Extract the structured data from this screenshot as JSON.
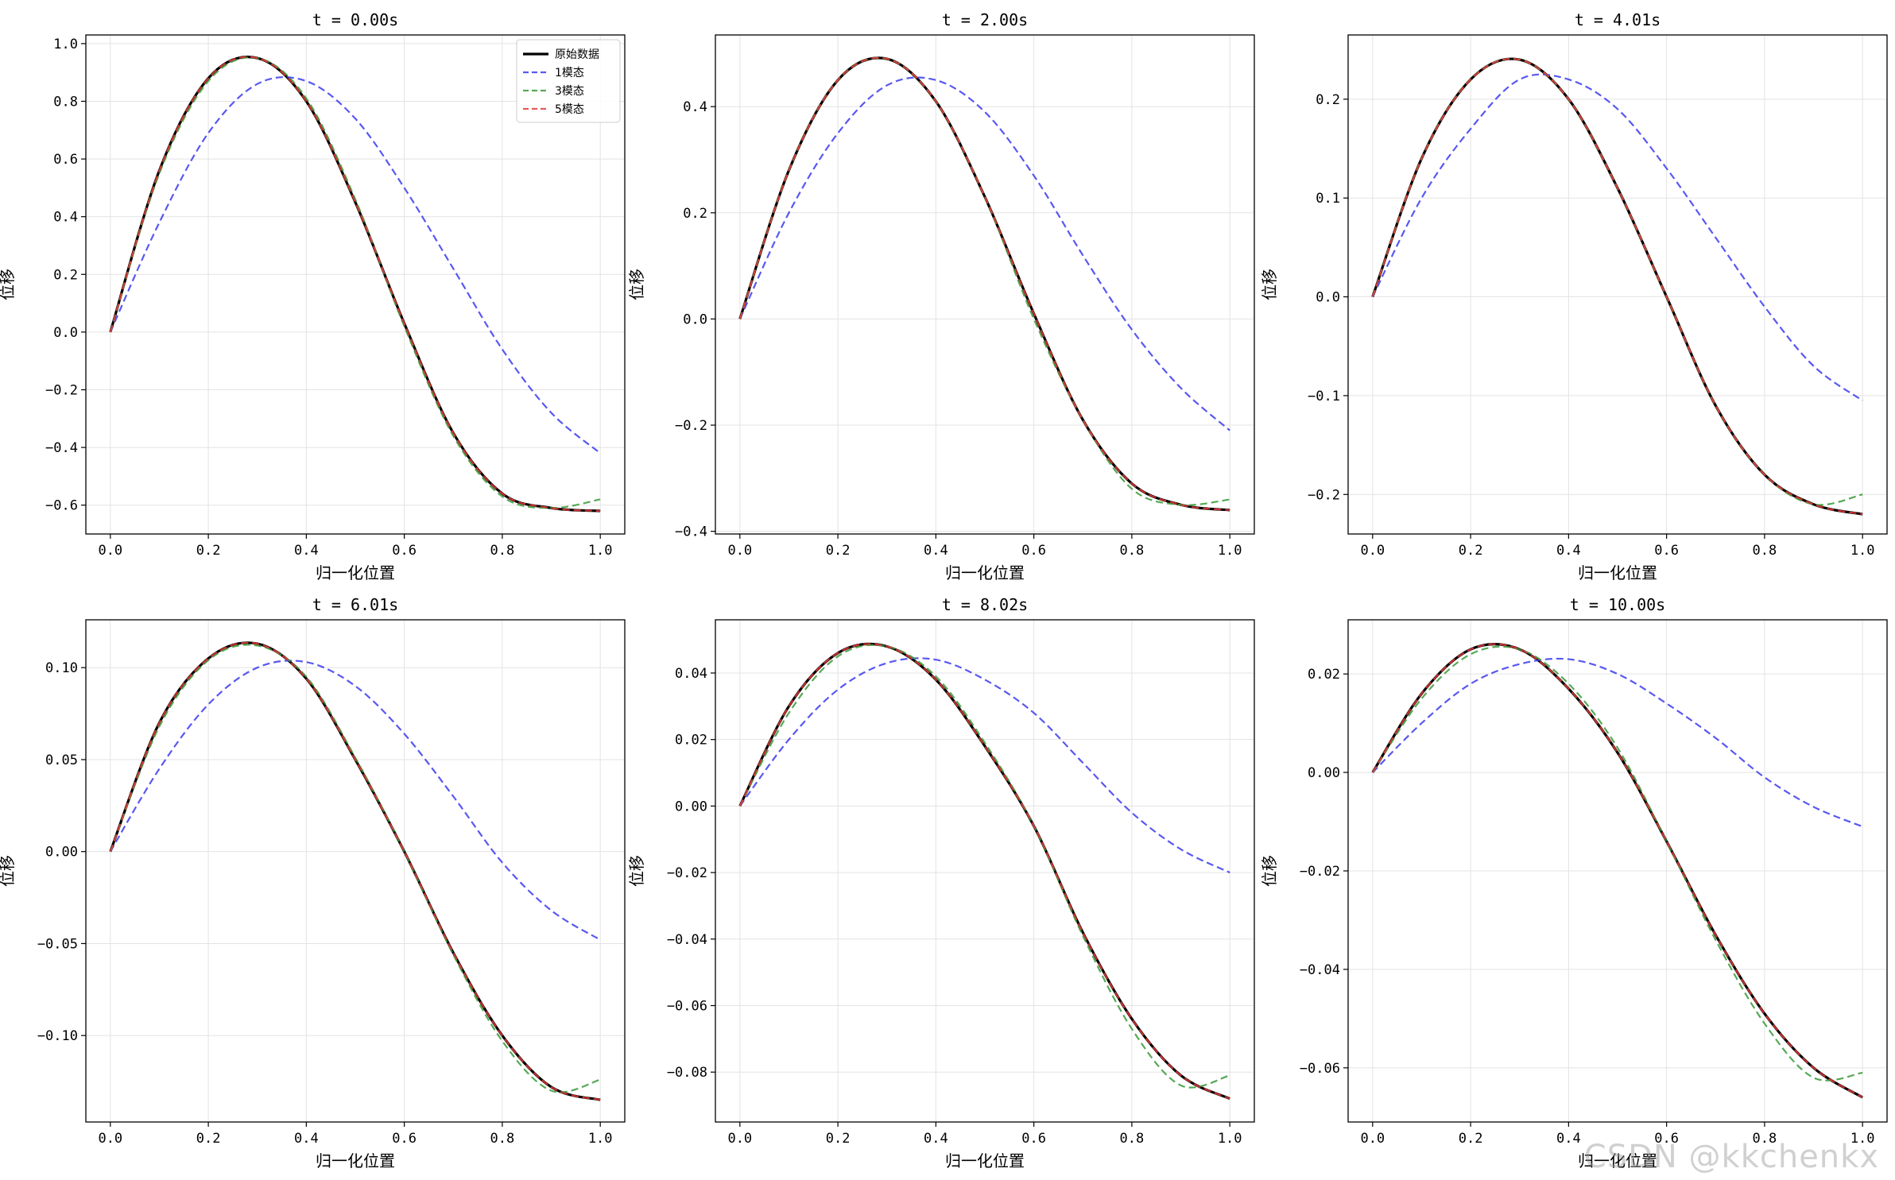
{
  "watermark": "CSDN @kkchenkx",
  "colors": {
    "original": "#000000",
    "mode1": "#3b3bf0",
    "mode3": "#3a9a3a",
    "mode5": "#e83a3a",
    "grid": "#e3e3e3"
  },
  "chart_data": [
    {
      "type": "line",
      "title": "t = 0.00s",
      "xlabel": "归一化位置",
      "ylabel": "位移",
      "xlim": [
        -0.05,
        1.05
      ],
      "ylim": [
        -0.7,
        1.03
      ],
      "xticks": [
        0.0,
        0.2,
        0.4,
        0.6,
        0.8,
        1.0
      ],
      "xticklabels": [
        "0.0",
        "0.2",
        "0.4",
        "0.6",
        "0.8",
        "1.0"
      ],
      "yticks": [
        -0.6,
        -0.4,
        -0.2,
        0.0,
        0.2,
        0.4,
        0.6,
        0.8,
        1.0
      ],
      "yticklabels": [
        "−0.6",
        "−0.4",
        "−0.2",
        "0.0",
        "0.2",
        "0.4",
        "0.6",
        "0.8",
        "1.0"
      ],
      "grid": true,
      "legend": "top-right",
      "x": [
        0.0,
        0.1,
        0.2,
        0.3,
        0.4,
        0.5,
        0.6,
        0.7,
        0.8,
        0.9,
        1.0
      ],
      "series": [
        {
          "name": "原始数据",
          "style": "solid",
          "values": [
            0.0,
            0.56,
            0.88,
            0.95,
            0.8,
            0.45,
            0.03,
            -0.35,
            -0.56,
            -0.61,
            -0.62
          ]
        },
        {
          "name": "1模态",
          "style": "dashed",
          "values": [
            0.0,
            0.38,
            0.69,
            0.86,
            0.87,
            0.74,
            0.5,
            0.22,
            -0.06,
            -0.28,
            -0.42
          ]
        },
        {
          "name": "3模态",
          "style": "dashed",
          "values": [
            0.0,
            0.55,
            0.87,
            0.95,
            0.81,
            0.46,
            0.02,
            -0.36,
            -0.57,
            -0.61,
            -0.58
          ]
        },
        {
          "name": "5模态",
          "style": "dashed",
          "values": [
            0.0,
            0.56,
            0.88,
            0.95,
            0.8,
            0.45,
            0.03,
            -0.35,
            -0.56,
            -0.61,
            -0.62
          ]
        }
      ]
    },
    {
      "type": "line",
      "title": "t = 2.00s",
      "xlabel": "归一化位置",
      "ylabel": "位移",
      "xlim": [
        -0.05,
        1.05
      ],
      "ylim": [
        -0.405,
        0.535
      ],
      "xticks": [
        0.0,
        0.2,
        0.4,
        0.6,
        0.8,
        1.0
      ],
      "xticklabels": [
        "0.0",
        "0.2",
        "0.4",
        "0.6",
        "0.8",
        "1.0"
      ],
      "yticks": [
        -0.4,
        -0.2,
        0.0,
        0.2,
        0.4
      ],
      "yticklabels": [
        "−0.4",
        "−0.2",
        "0.0",
        "0.2",
        "0.4"
      ],
      "grid": true,
      "x": [
        0.0,
        0.1,
        0.2,
        0.3,
        0.4,
        0.5,
        0.6,
        0.7,
        0.8,
        0.9,
        1.0
      ],
      "series": [
        {
          "name": "原始数据",
          "style": "solid",
          "values": [
            0.0,
            0.28,
            0.45,
            0.49,
            0.41,
            0.23,
            0.01,
            -0.19,
            -0.31,
            -0.35,
            -0.36
          ]
        },
        {
          "name": "1模态",
          "style": "dashed",
          "values": [
            0.0,
            0.2,
            0.35,
            0.44,
            0.45,
            0.39,
            0.27,
            0.12,
            -0.02,
            -0.13,
            -0.21
          ]
        },
        {
          "name": "3模态",
          "style": "dashed",
          "values": [
            0.0,
            0.28,
            0.45,
            0.49,
            0.41,
            0.23,
            0.0,
            -0.19,
            -0.32,
            -0.35,
            -0.34
          ]
        },
        {
          "name": "5模态",
          "style": "dashed",
          "values": [
            0.0,
            0.28,
            0.45,
            0.49,
            0.41,
            0.23,
            0.01,
            -0.19,
            -0.31,
            -0.35,
            -0.36
          ]
        }
      ]
    },
    {
      "type": "line",
      "title": "t = 4.01s",
      "xlabel": "归一化位置",
      "ylabel": "位移",
      "xlim": [
        -0.05,
        1.05
      ],
      "ylim": [
        -0.24,
        0.265
      ],
      "xticks": [
        0.0,
        0.2,
        0.4,
        0.6,
        0.8,
        1.0
      ],
      "xticklabels": [
        "0.0",
        "0.2",
        "0.4",
        "0.6",
        "0.8",
        "1.0"
      ],
      "yticks": [
        -0.2,
        -0.1,
        0.0,
        0.1,
        0.2
      ],
      "yticklabels": [
        "−0.2",
        "−0.1",
        "0.0",
        "0.1",
        "0.2"
      ],
      "grid": true,
      "x": [
        0.0,
        0.1,
        0.2,
        0.3,
        0.4,
        0.5,
        0.6,
        0.7,
        0.8,
        0.9,
        1.0
      ],
      "series": [
        {
          "name": "原始数据",
          "style": "solid",
          "values": [
            0.0,
            0.14,
            0.22,
            0.24,
            0.2,
            0.11,
            0.0,
            -0.11,
            -0.18,
            -0.21,
            -0.22
          ]
        },
        {
          "name": "1模态",
          "style": "dashed",
          "values": [
            0.0,
            0.1,
            0.17,
            0.22,
            0.22,
            0.19,
            0.13,
            0.06,
            -0.01,
            -0.07,
            -0.105
          ]
        },
        {
          "name": "3模态",
          "style": "dashed",
          "values": [
            0.0,
            0.14,
            0.22,
            0.24,
            0.2,
            0.11,
            0.0,
            -0.11,
            -0.18,
            -0.21,
            -0.2
          ]
        },
        {
          "name": "5模态",
          "style": "dashed",
          "values": [
            0.0,
            0.14,
            0.22,
            0.24,
            0.2,
            0.11,
            0.0,
            -0.11,
            -0.18,
            -0.21,
            -0.22
          ]
        }
      ]
    },
    {
      "type": "line",
      "title": "t = 6.01s",
      "xlabel": "归一化位置",
      "ylabel": "位移",
      "xlim": [
        -0.05,
        1.05
      ],
      "ylim": [
        -0.147,
        0.126
      ],
      "xticks": [
        0.0,
        0.2,
        0.4,
        0.6,
        0.8,
        1.0
      ],
      "xticklabels": [
        "0.0",
        "0.2",
        "0.4",
        "0.6",
        "0.8",
        "1.0"
      ],
      "yticks": [
        -0.1,
        -0.05,
        0.0,
        0.05,
        0.1
      ],
      "yticklabels": [
        "−0.10",
        "−0.05",
        "0.00",
        "0.05",
        "0.10"
      ],
      "grid": true,
      "x": [
        0.0,
        0.1,
        0.2,
        0.3,
        0.4,
        0.5,
        0.6,
        0.7,
        0.8,
        0.9,
        1.0
      ],
      "series": [
        {
          "name": "原始数据",
          "style": "solid",
          "values": [
            0.0,
            0.07,
            0.105,
            0.113,
            0.094,
            0.05,
            0.0,
            -0.055,
            -0.1,
            -0.128,
            -0.135
          ]
        },
        {
          "name": "1模态",
          "style": "dashed",
          "values": [
            0.0,
            0.045,
            0.08,
            0.1,
            0.103,
            0.09,
            0.064,
            0.03,
            -0.006,
            -0.032,
            -0.048
          ]
        },
        {
          "name": "3模态",
          "style": "dashed",
          "values": [
            0.0,
            0.068,
            0.104,
            0.112,
            0.095,
            0.051,
            0.0,
            -0.056,
            -0.103,
            -0.13,
            -0.124
          ]
        },
        {
          "name": "5模态",
          "style": "dashed",
          "values": [
            0.0,
            0.07,
            0.105,
            0.113,
            0.094,
            0.05,
            0.0,
            -0.055,
            -0.1,
            -0.128,
            -0.135
          ]
        }
      ]
    },
    {
      "type": "line",
      "title": "t = 8.02s",
      "xlabel": "归一化位置",
      "ylabel": "位移",
      "xlim": [
        -0.05,
        1.05
      ],
      "ylim": [
        -0.095,
        0.056
      ],
      "xticks": [
        0.0,
        0.2,
        0.4,
        0.6,
        0.8,
        1.0
      ],
      "xticklabels": [
        "0.0",
        "0.2",
        "0.4",
        "0.6",
        "0.8",
        "1.0"
      ],
      "yticks": [
        -0.08,
        -0.06,
        -0.04,
        -0.02,
        0.0,
        0.02,
        0.04
      ],
      "yticklabels": [
        "−0.08",
        "−0.06",
        "−0.04",
        "−0.02",
        "0.00",
        "0.02",
        "0.04"
      ],
      "grid": true,
      "x": [
        0.0,
        0.1,
        0.2,
        0.3,
        0.4,
        0.5,
        0.6,
        0.7,
        0.8,
        0.9,
        1.0
      ],
      "series": [
        {
          "name": "原始数据",
          "style": "solid",
          "values": [
            0.0,
            0.03,
            0.046,
            0.048,
            0.038,
            0.018,
            -0.006,
            -0.038,
            -0.064,
            -0.081,
            -0.088
          ]
        },
        {
          "name": "1模态",
          "style": "dashed",
          "values": [
            0.0,
            0.02,
            0.035,
            0.043,
            0.044,
            0.038,
            0.028,
            0.013,
            -0.002,
            -0.013,
            -0.02
          ]
        },
        {
          "name": "3模态",
          "style": "dashed",
          "values": [
            0.0,
            0.028,
            0.045,
            0.048,
            0.039,
            0.019,
            -0.006,
            -0.039,
            -0.067,
            -0.084,
            -0.081
          ]
        },
        {
          "name": "5模态",
          "style": "dashed",
          "values": [
            0.0,
            0.03,
            0.046,
            0.048,
            0.038,
            0.018,
            -0.006,
            -0.038,
            -0.064,
            -0.081,
            -0.088
          ]
        }
      ]
    },
    {
      "type": "line",
      "title": "t = 10.00s",
      "xlabel": "归一化位置",
      "ylabel": "位移",
      "xlim": [
        -0.05,
        1.05
      ],
      "ylim": [
        -0.071,
        0.031
      ],
      "xticks": [
        0.0,
        0.2,
        0.4,
        0.6,
        0.8,
        1.0
      ],
      "xticklabels": [
        "0.0",
        "0.2",
        "0.4",
        "0.6",
        "0.8",
        "1.0"
      ],
      "yticks": [
        -0.06,
        -0.04,
        -0.02,
        0.0,
        0.02
      ],
      "yticklabels": [
        "−0.06",
        "−0.04",
        "−0.02",
        "0.00",
        "0.02"
      ],
      "grid": true,
      "x": [
        0.0,
        0.1,
        0.2,
        0.3,
        0.4,
        0.5,
        0.6,
        0.7,
        0.8,
        0.9,
        1.0
      ],
      "series": [
        {
          "name": "原始数据",
          "style": "solid",
          "values": [
            0.0,
            0.016,
            0.025,
            0.025,
            0.017,
            0.004,
            -0.014,
            -0.033,
            -0.049,
            -0.06,
            -0.066
          ]
        },
        {
          "name": "1模态",
          "style": "dashed",
          "values": [
            0.0,
            0.01,
            0.018,
            0.022,
            0.023,
            0.02,
            0.014,
            0.007,
            -0.001,
            -0.007,
            -0.011
          ]
        },
        {
          "name": "3模态",
          "style": "dashed",
          "values": [
            0.0,
            0.015,
            0.024,
            0.025,
            0.018,
            0.005,
            -0.014,
            -0.034,
            -0.051,
            -0.062,
            -0.061
          ]
        },
        {
          "name": "5模态",
          "style": "dashed",
          "values": [
            0.0,
            0.016,
            0.025,
            0.025,
            0.017,
            0.004,
            -0.014,
            -0.033,
            -0.049,
            -0.06,
            -0.066
          ]
        }
      ]
    }
  ]
}
